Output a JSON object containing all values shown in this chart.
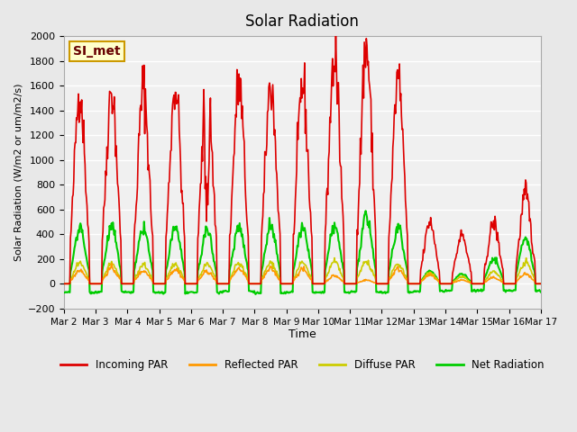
{
  "title": "Solar Radiation",
  "xlabel": "Time",
  "ylabel": "Solar Radiation (W/m2 or um/m2/s)",
  "ylim": [
    -200,
    2000
  ],
  "annotation_text": "SI_met",
  "annotation_bg": "#ffffcc",
  "annotation_border": "#cc9900",
  "bg_color": "#e8e8e8",
  "plot_bg": "#f0f0f0",
  "grid_color": "#ffffff",
  "xtick_labels": [
    "Mar 2",
    "Mar 3",
    "Mar 4",
    "Mar 5",
    "Mar 6",
    "Mar 7",
    "Mar 8",
    "Mar 9",
    "Mar 10",
    "Mar 11",
    "Mar 12",
    "Mar 13",
    "Mar 14",
    "Mar 15",
    "Mar 16",
    "Mar 17"
  ],
  "line_colors": {
    "incoming": "#dd0000",
    "reflected": "#ff9900",
    "diffuse": "#cccc00",
    "net": "#00cc00"
  },
  "line_widths": {
    "incoming": 1.2,
    "reflected": 1.2,
    "diffuse": 1.2,
    "net": 1.5
  },
  "legend_labels": [
    "Incoming PAR",
    "Reflected PAR",
    "Diffuse PAR",
    "Net Radiation"
  ],
  "days": 15,
  "day_peak_incoming": [
    1550,
    1570,
    1580,
    1600,
    1610,
    1610,
    1610,
    1610,
    1820,
    1910,
    1660,
    500,
    390,
    490,
    720
  ],
  "day_peak_reflected": [
    110,
    125,
    105,
    115,
    100,
    120,
    120,
    115,
    65,
    30,
    120,
    70,
    30,
    50,
    80
  ],
  "day_peak_diffuse": [
    160,
    160,
    155,
    160,
    155,
    165,
    170,
    170,
    175,
    180,
    160,
    90,
    55,
    100,
    175
  ],
  "day_peak_net": [
    450,
    460,
    450,
    460,
    430,
    470,
    460,
    460,
    470,
    540,
    460,
    100,
    80,
    200,
    380
  ],
  "day_night_min_net": [
    -70,
    -65,
    -70,
    -75,
    -70,
    -60,
    -75,
    -70,
    -70,
    -65,
    -70,
    -60,
    -55,
    -55,
    -55
  ]
}
